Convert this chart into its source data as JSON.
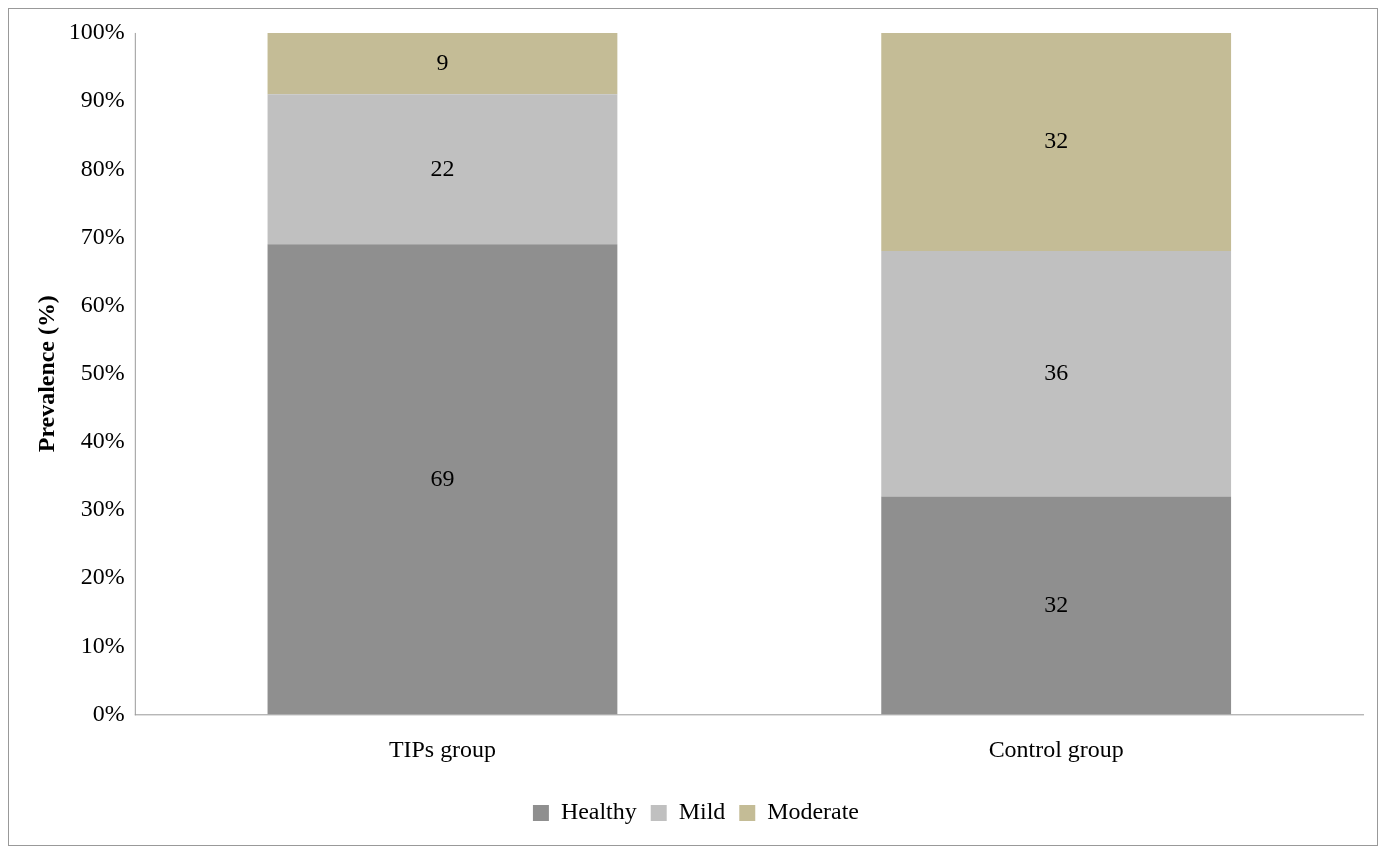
{
  "chart_data": {
    "type": "bar",
    "stacked": true,
    "ylabel": "Prevalence (%)",
    "categories": [
      "TIPs group",
      "Control group"
    ],
    "series": [
      {
        "name": "Healthy",
        "color": "#8f8f8f",
        "values": [
          69,
          32
        ]
      },
      {
        "name": "Mild",
        "color": "#c0c0c0",
        "values": [
          22,
          36
        ]
      },
      {
        "name": "Moderate",
        "color": "#c4bc96",
        "values": [
          9,
          32
        ]
      }
    ],
    "ylim": [
      0,
      100
    ],
    "yticks": [
      {
        "value": 0,
        "label": "0%"
      },
      {
        "value": 10,
        "label": "10%"
      },
      {
        "value": 20,
        "label": "20%"
      },
      {
        "value": 30,
        "label": "30%"
      },
      {
        "value": 40,
        "label": "40%"
      },
      {
        "value": 50,
        "label": "50%"
      },
      {
        "value": 60,
        "label": "60%"
      },
      {
        "value": 70,
        "label": "70%"
      },
      {
        "value": 80,
        "label": "80%"
      },
      {
        "value": 90,
        "label": "90%"
      },
      {
        "value": 100,
        "label": "100%"
      }
    ],
    "data_labels": true,
    "legend": "bottom",
    "grid": false
  }
}
